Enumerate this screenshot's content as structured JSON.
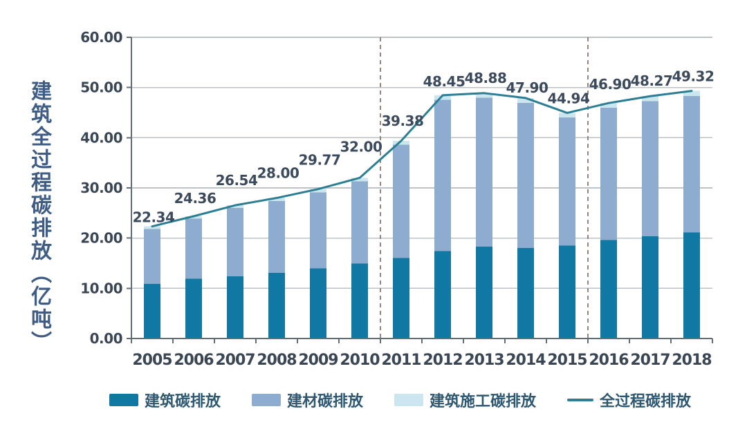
{
  "figure": {
    "background": "#ffffff"
  },
  "chart_data": {
    "type": "bar",
    "stacked": true,
    "title": "",
    "xlabel": "",
    "ylabel": "建筑全过程碳排放（亿吨）",
    "ylim": [
      0,
      60
    ],
    "ytick_step": 10,
    "ytick_labels": [
      "0.00",
      "10.00",
      "20.00",
      "30.00",
      "40.00",
      "50.00",
      "60.00"
    ],
    "grid": true,
    "legend_position": "bottom",
    "categories": [
      "2005",
      "2006",
      "2007",
      "2008",
      "2009",
      "2010",
      "2011",
      "2012",
      "2013",
      "2014",
      "2015",
      "2016",
      "2017",
      "2018"
    ],
    "series": [
      {
        "name": "建筑碳排放",
        "color": "#1178A3",
        "values": [
          10.9,
          11.9,
          12.4,
          13.1,
          14.0,
          14.9,
          16.0,
          17.4,
          18.3,
          18.0,
          18.5,
          19.6,
          20.4,
          21.1
        ]
      },
      {
        "name": "建材碳排放",
        "color": "#8DACCF",
        "values": [
          10.94,
          11.96,
          13.59,
          14.3,
          15.12,
          16.4,
          22.58,
          30.15,
          29.63,
          28.95,
          25.54,
          26.35,
          26.87,
          27.22
        ]
      },
      {
        "name": "建筑施工碳排放",
        "color": "#CBE6EE",
        "values": [
          0.5,
          0.5,
          0.55,
          0.6,
          0.65,
          0.7,
          0.8,
          0.9,
          0.95,
          0.95,
          0.9,
          0.95,
          1.0,
          1.0
        ]
      }
    ],
    "line": {
      "name": "全过程碳排放",
      "color": "#2C7E93",
      "values": [
        22.34,
        24.36,
        26.54,
        28.0,
        29.77,
        32.0,
        39.38,
        48.45,
        48.88,
        47.9,
        44.94,
        46.9,
        48.27,
        49.32
      ],
      "labels": [
        "22.34",
        "24.36",
        "26.54",
        "28.00",
        "29.77",
        "32.00",
        "39.38",
        "48.45",
        "48.88",
        "47.90",
        "44.94",
        "46.90",
        "48.27",
        "49.32"
      ]
    },
    "value_label_offsets": [
      13,
      26,
      36,
      36,
      42,
      45,
      29,
      20,
      22,
      15,
      21,
      27,
      22,
      21
    ],
    "separators_after_categories": [
      "2010",
      "2015"
    ]
  },
  "colors": {
    "grid": "#BCC2C6",
    "axis": "#626C74",
    "separator": "#95857C",
    "value_label": "#3B4A5C",
    "tick_label": "#3A4654",
    "y_title": "#3E5C84",
    "legend_text": "#2E5872"
  }
}
